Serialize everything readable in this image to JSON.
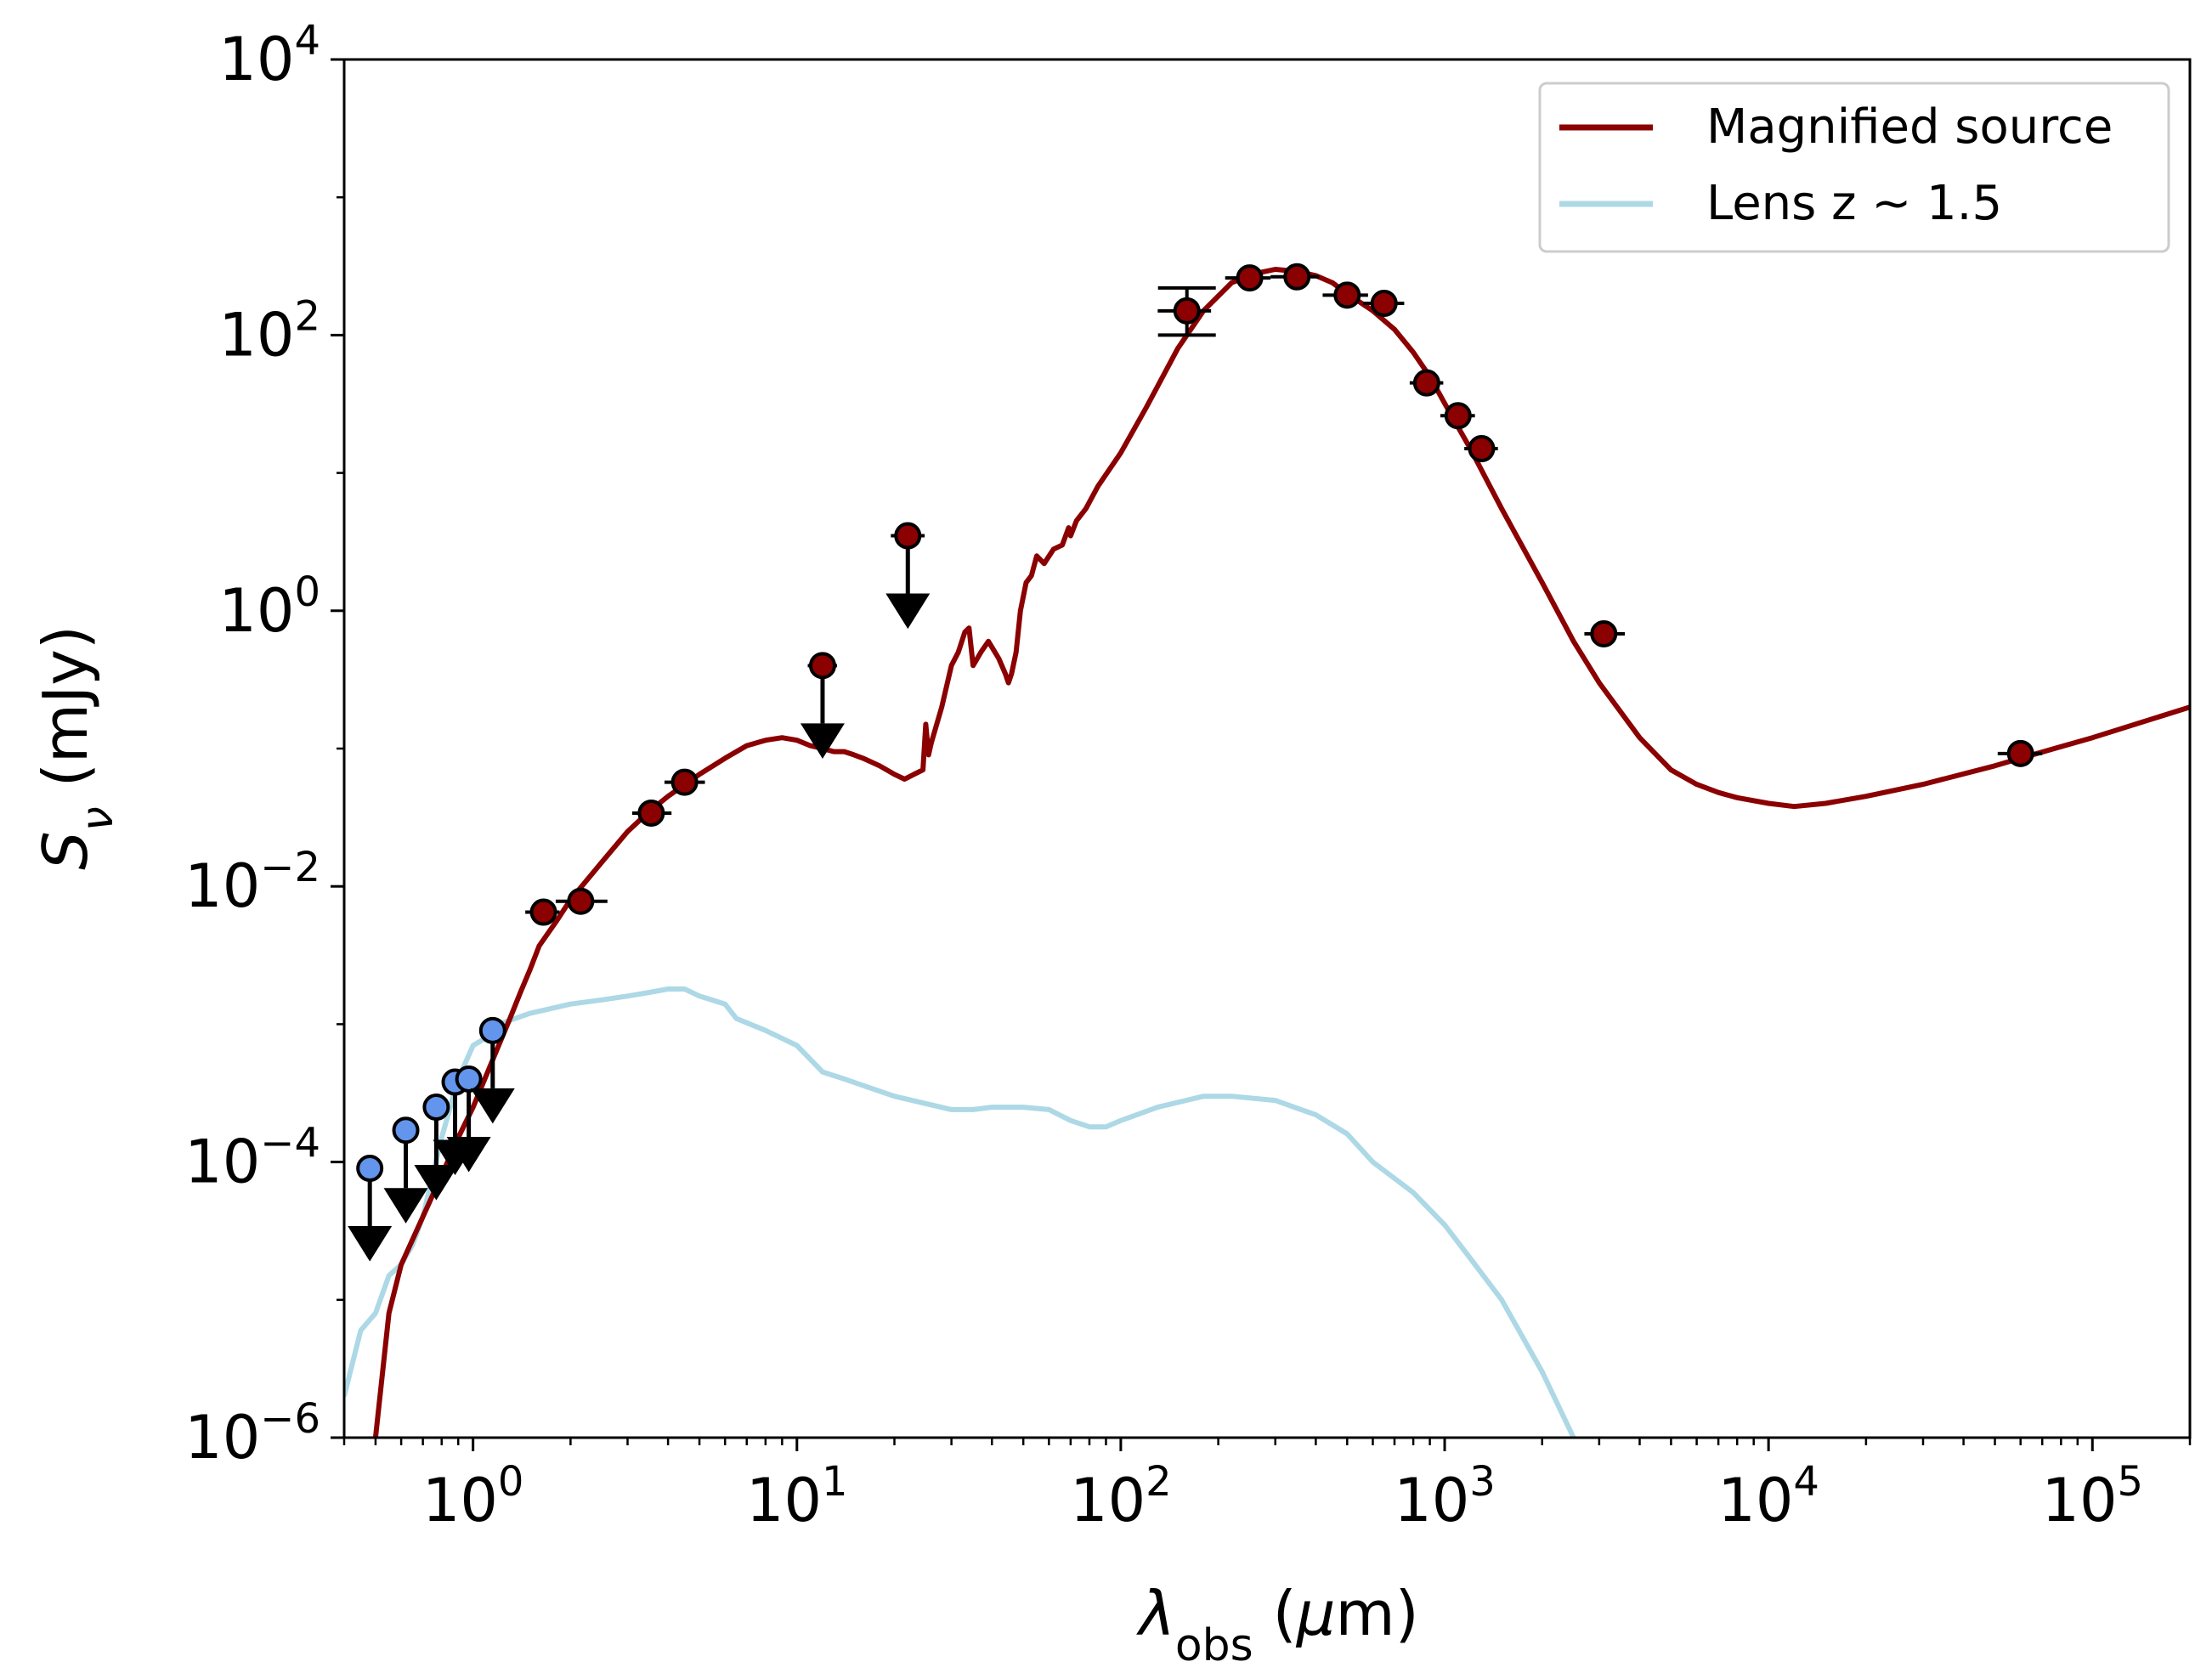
{
  "chart_data": {
    "type": "line",
    "title": "",
    "xscale": "log",
    "yscale": "log",
    "xlim": [
      0.4,
      200000
    ],
    "ylim": [
      1e-06,
      10000
    ],
    "xlabel": {
      "main": "λ",
      "sub": "obs",
      "rest": " (",
      "mu": "μ",
      "unit": "m)"
    },
    "ylabel": {
      "main": "S",
      "sub": "ν",
      "rest": " (mJy)"
    },
    "xticks": [
      {
        "value": 1,
        "base": "10",
        "exp": "0"
      },
      {
        "value": 10,
        "base": "10",
        "exp": "1"
      },
      {
        "value": 100,
        "base": "10",
        "exp": "2"
      },
      {
        "value": 1000,
        "base": "10",
        "exp": "3"
      },
      {
        "value": 10000,
        "base": "10",
        "exp": "4"
      },
      {
        "value": 100000,
        "base": "10",
        "exp": "5"
      }
    ],
    "yticks": [
      {
        "value": 1e-06,
        "base": "10",
        "exp": "−6"
      },
      {
        "value": 0.0001,
        "base": "10",
        "exp": "−4"
      },
      {
        "value": 0.01,
        "base": "10",
        "exp": "−2"
      },
      {
        "value": 1,
        "base": "10",
        "exp": "0"
      },
      {
        "value": 100,
        "base": "10",
        "exp": "2"
      },
      {
        "value": 10000,
        "base": "10",
        "exp": "4"
      }
    ],
    "legend": {
      "position": "top-right",
      "entries": [
        {
          "label": "Magnified source",
          "color": "#8b0000"
        },
        {
          "label": "Lens z ~ 1.5",
          "color": "#add8e6"
        }
      ]
    },
    "series": [
      {
        "name": "Magnified source",
        "color": "#8b0000",
        "x": [
          0.5,
          0.55,
          0.6,
          0.7,
          0.8,
          0.9,
          1.0,
          1.2,
          1.3,
          1.4,
          1.5,
          1.6,
          1.8,
          2.0,
          2.5,
          3.0,
          3.5,
          4.0,
          5.0,
          6.0,
          7.0,
          8.0,
          9.0,
          10.0,
          11.0,
          12.0,
          13.0,
          14.0,
          15.0,
          16.0,
          18.0,
          20.0,
          21.5,
          23.0,
          24.5,
          25.0,
          25.5,
          26.0,
          28.0,
          30.0,
          31.5,
          33.0,
          34.0,
          35.0,
          37.0,
          39.0,
          42.0,
          44.0,
          45.0,
          46.0,
          47.5,
          49.0,
          51.0,
          53.0,
          55.0,
          58.0,
          62.0,
          66.0,
          69.0,
          70.0,
          73.0,
          78.0,
          85.0,
          100.0,
          120.0,
          150.0,
          180.0,
          220.0,
          260.0,
          300.0,
          350.0,
          400.0,
          450.0,
          500.0,
          600.0,
          700.0,
          800.0,
          900.0,
          1000.0,
          1200.0,
          1500.0,
          2000.0,
          2500.0,
          3000.0,
          4000.0,
          5000.0,
          6000.0,
          7000.0,
          8000.0,
          10000.0,
          12000.0,
          15000.0,
          20000.0,
          30000.0,
          50000.0,
          60000.0,
          100000.0,
          200000.0
        ],
        "y": [
          1e-06,
          8e-06,
          1.8e-05,
          4e-05,
          8e-05,
          0.00015,
          0.00025,
          0.0007,
          0.0011,
          0.0017,
          0.0025,
          0.0037,
          0.0055,
          0.008,
          0.015,
          0.025,
          0.035,
          0.045,
          0.065,
          0.085,
          0.105,
          0.115,
          0.12,
          0.115,
          0.105,
          0.1,
          0.095,
          0.095,
          0.09,
          0.085,
          0.075,
          0.065,
          0.06,
          0.065,
          0.07,
          0.15,
          0.09,
          0.11,
          0.2,
          0.4,
          0.5,
          0.7,
          0.75,
          0.4,
          0.5,
          0.6,
          0.45,
          0.35,
          0.3,
          0.35,
          0.5,
          1.0,
          1.6,
          1.8,
          2.5,
          2.2,
          2.8,
          3.0,
          4.0,
          3.5,
          4.5,
          5.5,
          8.0,
          14.0,
          30.0,
          80.0,
          150.0,
          240.0,
          280.0,
          300.0,
          290.0,
          270.0,
          240.0,
          200.0,
          150.0,
          110.0,
          75.0,
          50.0,
          32.0,
          15.0,
          5.5,
          1.6,
          0.6,
          0.3,
          0.12,
          0.07,
          0.055,
          0.048,
          0.044,
          0.04,
          0.038,
          0.04,
          0.045,
          0.055,
          0.075,
          0.085,
          0.12,
          0.2
        ]
      },
      {
        "name": "Lens z ~ 1.5",
        "color": "#add8e6",
        "x": [
          0.4,
          0.45,
          0.5,
          0.55,
          0.6,
          0.65,
          0.7,
          0.8,
          0.9,
          1.0,
          1.1,
          1.2,
          1.5,
          2.0,
          2.5,
          3.0,
          3.5,
          4.0,
          4.5,
          5.0,
          6.0,
          6.5,
          8.0,
          10.0,
          12.0,
          14.0,
          20.0,
          30.0,
          35.0,
          40.0,
          50.0,
          60.0,
          70.0,
          80.0,
          90.0,
          100.0,
          130.0,
          180.0,
          220.0,
          300.0,
          400.0,
          500.0,
          600.0,
          800.0,
          1000.0,
          1200.0,
          1500.0,
          2000.0,
          2500.0
        ],
        "y": [
          2e-06,
          6e-06,
          8e-06,
          1.5e-05,
          1.8e-05,
          2.5e-05,
          4e-05,
          0.00015,
          0.0004,
          0.0007,
          0.0008,
          0.001,
          0.0012,
          0.0014,
          0.0015,
          0.0016,
          0.0017,
          0.0018,
          0.0018,
          0.0016,
          0.0014,
          0.0011,
          0.0009,
          0.0007,
          0.00045,
          0.0004,
          0.0003,
          0.00024,
          0.00024,
          0.00025,
          0.00025,
          0.00024,
          0.0002,
          0.00018,
          0.00018,
          0.0002,
          0.00025,
          0.0003,
          0.0003,
          0.00028,
          0.00022,
          0.00016,
          0.0001,
          6e-05,
          3.5e-05,
          2e-05,
          1e-05,
          3e-06,
          1e-06
        ]
      }
    ],
    "points": [
      {
        "x": 1.65,
        "y": 0.0065,
        "xerr": [
          1.45,
          1.85
        ],
        "color": "#8b0000"
      },
      {
        "x": 2.15,
        "y": 0.0078,
        "xerr": [
          1.8,
          2.6
        ],
        "color": "#8b0000"
      },
      {
        "x": 3.55,
        "y": 0.034,
        "xerr": [
          3.1,
          4.1
        ],
        "color": "#8b0000"
      },
      {
        "x": 4.5,
        "y": 0.057,
        "xerr": [
          3.9,
          5.2
        ],
        "color": "#8b0000"
      },
      {
        "x": 160,
        "y": 150,
        "xerr": [
          130,
          190
        ],
        "yerr": [
          100,
          220
        ],
        "color": "#8b0000"
      },
      {
        "x": 250,
        "y": 260,
        "xerr": [
          210,
          290
        ],
        "color": "#8b0000"
      },
      {
        "x": 350,
        "y": 265,
        "xerr": [
          290,
          410
        ],
        "color": "#8b0000"
      },
      {
        "x": 500,
        "y": 195,
        "xerr": [
          420,
          580
        ],
        "color": "#8b0000"
      },
      {
        "x": 650,
        "y": 170,
        "xerr": [
          560,
          750
        ],
        "color": "#8b0000"
      },
      {
        "x": 880,
        "y": 45,
        "xerr": [
          780,
          990
        ],
        "color": "#8b0000"
      },
      {
        "x": 1100,
        "y": 26,
        "xerr": [
          970,
          1240
        ],
        "color": "#8b0000"
      },
      {
        "x": 1300,
        "y": 15,
        "xerr": [
          1150,
          1460
        ],
        "color": "#8b0000"
      },
      {
        "x": 3100,
        "y": 0.68,
        "xerr": [
          2700,
          3600
        ],
        "color": "#8b0000"
      },
      {
        "x": 60000,
        "y": 0.092,
        "xerr": [
          51000,
          70000
        ],
        "color": "#8b0000"
      }
    ],
    "upper_limits": [
      {
        "x": 12,
        "y": 0.4,
        "xerr": [
          10.8,
          13.3
        ],
        "color": "#8b0000"
      },
      {
        "x": 22,
        "y": 3.5,
        "xerr": [
          19.5,
          24.8
        ],
        "color": "#8b0000"
      },
      {
        "x": 0.48,
        "y": 9e-05,
        "color": "#6495ed"
      },
      {
        "x": 0.62,
        "y": 0.00017,
        "color": "#6495ed"
      },
      {
        "x": 0.77,
        "y": 0.00025,
        "xerr": [
          0.72,
          0.82
        ],
        "color": "#6495ed"
      },
      {
        "x": 0.88,
        "y": 0.00038,
        "color": "#6495ed"
      },
      {
        "x": 0.97,
        "y": 0.0004,
        "color": "#6495ed"
      },
      {
        "x": 1.15,
        "y": 0.0009,
        "xerr": [
          1.05,
          1.25
        ],
        "color": "#6495ed"
      }
    ]
  }
}
